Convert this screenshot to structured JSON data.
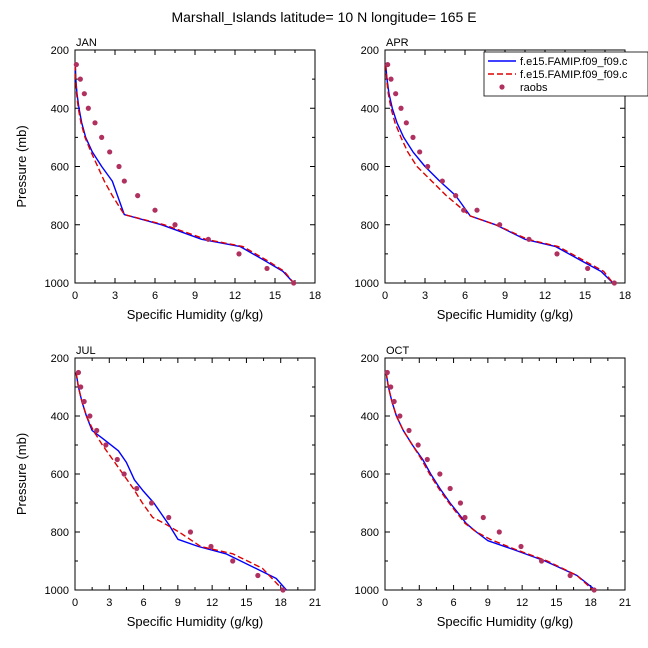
{
  "title": "Marshall_Islands  latitude= 10 N longitude= 165 E",
  "colors": {
    "model1": "#0000ff",
    "model2": "#dd0000",
    "raobs": "#b03060"
  },
  "legend": {
    "placement": "top-right of APR panel",
    "entries": [
      "f.e15.FAMIP.f09_f09.c",
      "f.e15.FAMIP.f09_f09.c",
      "raobs"
    ]
  },
  "chart_data": [
    {
      "type": "line",
      "panel": "JAN",
      "xlabel": "Specific Humidity (g/kg)",
      "ylabel": "Pressure (mb)",
      "xlim": [
        0,
        18
      ],
      "ylim": [
        1000,
        200
      ],
      "y_axis": "inverted",
      "xticks": [
        0,
        3,
        6,
        9,
        12,
        15,
        18
      ],
      "yticks": [
        200,
        400,
        600,
        800,
        1000
      ],
      "series": [
        {
          "name": "f.e15.FAMIP.f09_f09.c",
          "style": "solid",
          "x": [
            0.02,
            0.06,
            0.15,
            0.3,
            0.5,
            0.8,
            1.3,
            2.0,
            2.8,
            3.7,
            6.5,
            9.5,
            12.4,
            14.3,
            15.6,
            16.4
          ],
          "y": [
            250,
            300,
            350,
            400,
            450,
            500,
            550,
            600,
            650,
            765,
            800,
            850,
            875,
            925,
            960,
            1000
          ]
        },
        {
          "name": "f.e15.FAMIP.f09_f09.c",
          "style": "dashed",
          "x": [
            0.02,
            0.05,
            0.12,
            0.25,
            0.45,
            0.75,
            1.2,
            1.7,
            2.2,
            2.8,
            3.7,
            6.7,
            9.8,
            12.6,
            14.5,
            15.7,
            16.4
          ],
          "y": [
            250,
            300,
            350,
            400,
            450,
            500,
            550,
            600,
            650,
            700,
            765,
            800,
            850,
            875,
            925,
            960,
            1000
          ]
        }
      ],
      "raobs": {
        "x": [
          0.1,
          0.4,
          0.7,
          1.0,
          1.5,
          2.0,
          2.6,
          3.3,
          3.7,
          4.7,
          6.0,
          7.5,
          10.0,
          12.3,
          14.4,
          16.4
        ],
        "y": [
          250,
          300,
          350,
          400,
          450,
          500,
          550,
          600,
          650,
          700,
          750,
          800,
          850,
          900,
          950,
          1000
        ]
      }
    },
    {
      "type": "line",
      "panel": "APR",
      "xlabel": "Specific Humidity (g/kg)",
      "ylabel": "",
      "xlim": [
        0,
        18
      ],
      "ylim": [
        1000,
        200
      ],
      "y_axis": "inverted",
      "xticks": [
        0,
        3,
        6,
        9,
        12,
        15,
        18
      ],
      "yticks": [
        200,
        400,
        600,
        800,
        1000
      ],
      "series": [
        {
          "name": "f.e15.FAMIP.f09_f09.c",
          "style": "solid",
          "x": [
            0.05,
            0.15,
            0.3,
            0.55,
            0.9,
            1.4,
            2.1,
            3.0,
            4.1,
            5.3,
            6.4,
            8.3,
            10.5,
            12.8,
            14.8,
            16.2,
            17.1
          ],
          "y": [
            250,
            300,
            350,
            400,
            450,
            500,
            550,
            600,
            650,
            700,
            770,
            800,
            850,
            875,
            925,
            960,
            1000
          ]
        },
        {
          "name": "f.e15.FAMIP.f09_f09.c",
          "style": "dashed",
          "x": [
            0.05,
            0.12,
            0.25,
            0.45,
            0.75,
            1.2,
            1.7,
            2.4,
            3.5,
            4.6,
            6.4,
            8.3,
            10.7,
            13.0,
            15.0,
            16.4,
            17.1
          ],
          "y": [
            250,
            300,
            350,
            400,
            450,
            500,
            550,
            600,
            650,
            700,
            770,
            800,
            850,
            875,
            925,
            960,
            1000
          ]
        }
      ],
      "raobs": {
        "x": [
          0.2,
          0.45,
          0.8,
          1.2,
          1.6,
          2.1,
          2.6,
          3.2,
          4.3,
          5.3,
          5.9,
          6.9,
          8.6,
          10.8,
          12.9,
          15.2,
          17.2
        ],
        "y": [
          250,
          300,
          350,
          400,
          450,
          500,
          550,
          600,
          650,
          700,
          750,
          750,
          800,
          850,
          900,
          950,
          1000
        ]
      }
    },
    {
      "type": "line",
      "panel": "JUL",
      "xlabel": "Specific Humidity (g/kg)",
      "ylabel": "Pressure (mb)",
      "xlim": [
        0,
        21
      ],
      "ylim": [
        1000,
        200
      ],
      "y_axis": "inverted",
      "xticks": [
        0,
        3,
        6,
        9,
        12,
        15,
        18,
        21
      ],
      "yticks": [
        200,
        400,
        600,
        800,
        1000
      ],
      "series": [
        {
          "name": "f.e15.FAMIP.f09_f09.c",
          "style": "solid",
          "x": [
            0.1,
            0.3,
            0.6,
            1.0,
            1.5,
            2.5,
            3.8,
            4.5,
            5.2,
            6.0,
            6.9,
            7.6,
            8.3,
            9.0,
            10.8,
            13.2,
            15.8,
            17.6,
            18.5
          ],
          "y": [
            250,
            300,
            350,
            400,
            450,
            480,
            520,
            560,
            620,
            660,
            700,
            740,
            780,
            825,
            850,
            875,
            925,
            960,
            1000
          ]
        },
        {
          "name": "f.e15.FAMIP.f09_f09.c",
          "style": "dashed",
          "x": [
            0.1,
            0.3,
            0.6,
            1.0,
            1.6,
            2.4,
            3.3,
            4.2,
            5.1,
            5.9,
            6.8,
            7.8,
            9.1,
            11.0,
            13.8,
            16.4,
            18.2
          ],
          "y": [
            250,
            300,
            350,
            400,
            450,
            500,
            550,
            600,
            650,
            700,
            750,
            770,
            800,
            850,
            875,
            925,
            1000
          ]
        }
      ],
      "raobs": {
        "x": [
          0.3,
          0.5,
          0.8,
          1.3,
          1.9,
          2.7,
          3.7,
          4.3,
          5.4,
          6.7,
          8.2,
          10.1,
          11.9,
          13.8,
          16.0,
          18.2
        ],
        "y": [
          250,
          300,
          350,
          400,
          450,
          500,
          550,
          600,
          650,
          700,
          750,
          800,
          850,
          900,
          950,
          1000
        ]
      }
    },
    {
      "type": "line",
      "panel": "OCT",
      "xlabel": "Specific Humidity (g/kg)",
      "ylabel": "",
      "xlim": [
        0,
        21
      ],
      "ylim": [
        1000,
        200
      ],
      "y_axis": "inverted",
      "xticks": [
        0,
        3,
        6,
        9,
        12,
        15,
        18,
        21
      ],
      "yticks": [
        200,
        400,
        600,
        800,
        1000
      ],
      "series": [
        {
          "name": "f.e15.FAMIP.f09_f09.c",
          "style": "solid",
          "x": [
            0.1,
            0.3,
            0.6,
            1.0,
            1.6,
            2.4,
            3.3,
            4.0,
            4.8,
            5.7,
            6.5,
            7.1,
            8.0,
            9.0,
            11.2,
            14.0,
            16.8,
            18.4
          ],
          "y": [
            250,
            300,
            350,
            400,
            450,
            500,
            550,
            600,
            650,
            700,
            740,
            770,
            800,
            830,
            860,
            900,
            950,
            1000
          ]
        },
        {
          "name": "f.e15.FAMIP.f09_f09.c",
          "style": "dashed",
          "x": [
            0.1,
            0.3,
            0.6,
            1.0,
            1.6,
            2.4,
            3.2,
            3.9,
            4.7,
            5.6,
            6.4,
            7.0,
            8.0,
            9.2,
            11.4,
            14.2,
            16.8,
            18.2
          ],
          "y": [
            250,
            300,
            350,
            400,
            450,
            500,
            550,
            600,
            650,
            700,
            740,
            770,
            800,
            825,
            860,
            900,
            950,
            1000
          ]
        }
      ],
      "raobs": {
        "x": [
          0.2,
          0.5,
          0.8,
          1.3,
          2.1,
          2.9,
          3.7,
          4.8,
          5.7,
          6.6,
          7.0,
          8.6,
          10.0,
          11.9,
          13.7,
          16.2,
          18.3
        ],
        "y": [
          250,
          300,
          350,
          400,
          450,
          500,
          550,
          600,
          650,
          700,
          750,
          750,
          800,
          850,
          900,
          950,
          1000
        ]
      }
    }
  ]
}
